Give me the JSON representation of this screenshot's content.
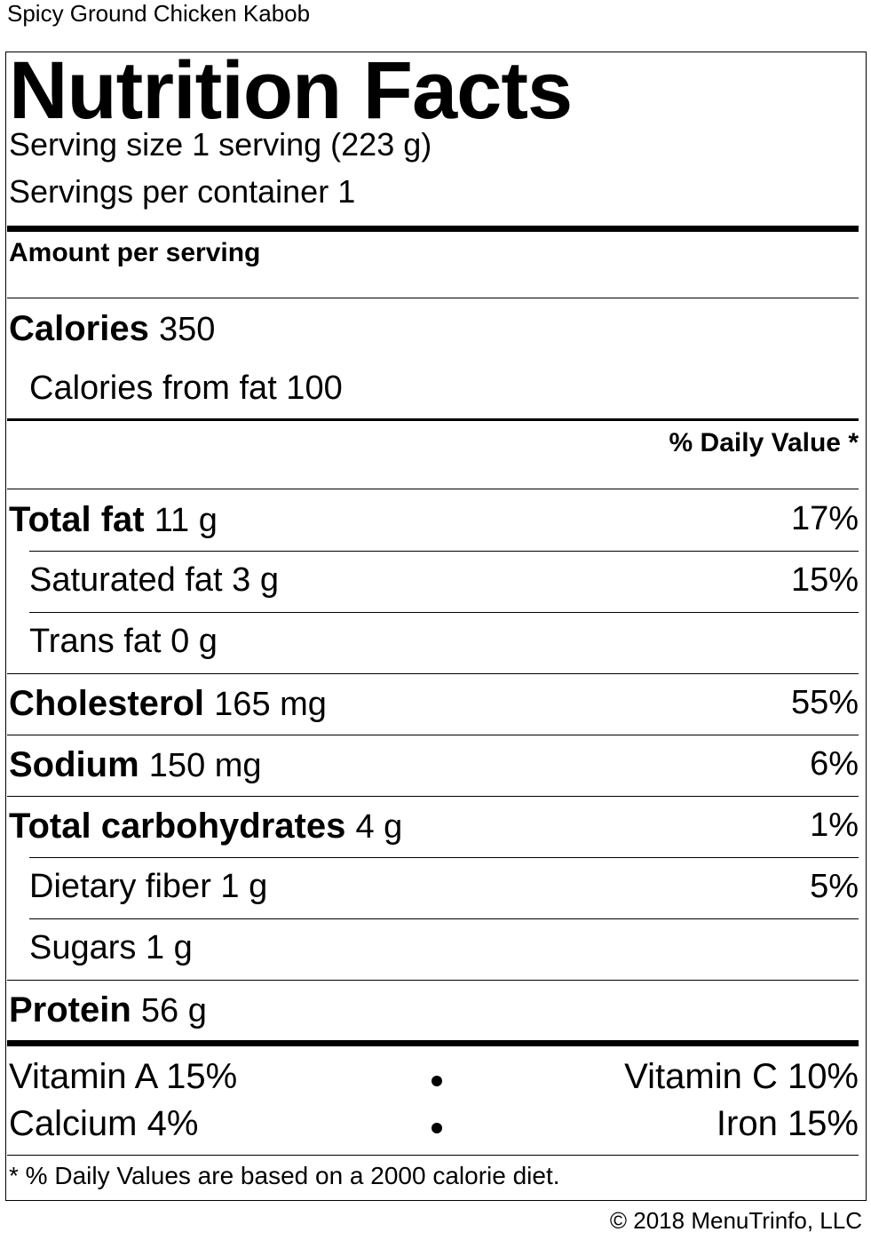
{
  "dish_name": "Spicy Ground Chicken Kabob",
  "label": {
    "title": "Nutrition Facts",
    "serving_size": "Serving size 1 serving (223 g)",
    "servings_per_container": "Servings per container 1",
    "amount_per_serving": "Amount per serving",
    "calories_label": "Calories",
    "calories_value": "350",
    "calories_from_fat": "Calories from fat 100",
    "daily_value_header": "% Daily Value *",
    "nutrients": [
      {
        "name": "Total fat",
        "amount": "11 g",
        "dv": "17%"
      },
      {
        "name": "Saturated fat",
        "amount": "3 g",
        "dv": "15%"
      },
      {
        "name": "Trans fat",
        "amount": "0 g",
        "dv": ""
      },
      {
        "name": "Cholesterol",
        "amount": "165 mg",
        "dv": "55%"
      },
      {
        "name": "Sodium",
        "amount": "150 mg",
        "dv": "6%"
      },
      {
        "name": "Total carbohydrates",
        "amount": "4 g",
        "dv": "1%"
      },
      {
        "name": "Dietary fiber",
        "amount": "1 g",
        "dv": "5%"
      },
      {
        "name": "Sugars",
        "amount": "1 g",
        "dv": ""
      },
      {
        "name": "Protein",
        "amount": "56 g",
        "dv": ""
      }
    ],
    "vitamins": {
      "vitamin_a": "Vitamin A 15%",
      "vitamin_c": "Vitamin C 10%",
      "calcium": "Calcium 4%",
      "iron": "Iron 15%"
    },
    "footnote": "* % Daily Values are based on a 2000 calorie diet."
  },
  "copyright": "© 2018 MenuTrinfo, LLC"
}
